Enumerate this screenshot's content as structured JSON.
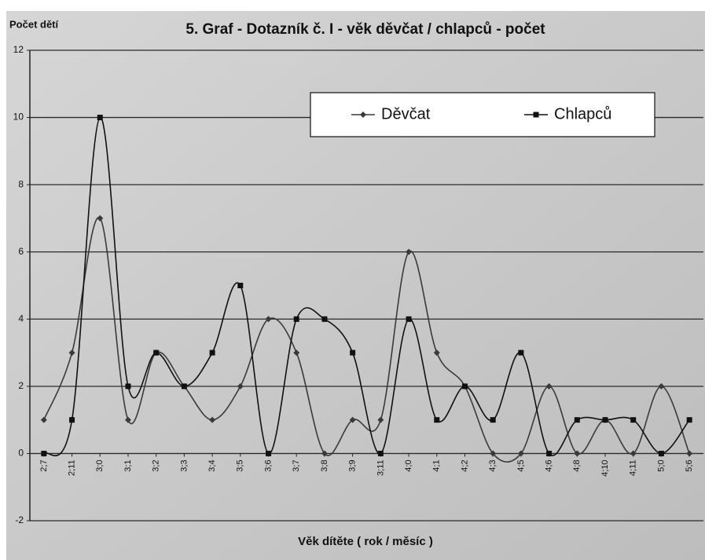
{
  "chart_data": {
    "type": "line",
    "title": "5. Graf - Dotazník č. I - věk děvčat / chlapců  - počet",
    "y_label": "Počet dětí",
    "x_label": "Věk dítěte ( rok / měsíc )",
    "categories": [
      "2;7",
      "2;11",
      "3;0",
      "3;1",
      "3;2",
      "3;3",
      "3;4",
      "3;5",
      "3;6",
      "3;7",
      "3;8",
      "3;9",
      "3;11",
      "4;0",
      "4;1",
      "4;2",
      "4;3",
      "4;5",
      "4;6",
      "4;8",
      "4;10",
      "4;11",
      "5;0",
      "5;6"
    ],
    "series": [
      {
        "name": "Děvčat",
        "color": "#3a3a3a",
        "marker": "diamond",
        "values": [
          1,
          3,
          7,
          1,
          3,
          2,
          1,
          2,
          4,
          3,
          0,
          1,
          1,
          6,
          3,
          2,
          0,
          0,
          2,
          0,
          1,
          0,
          2,
          0
        ]
      },
      {
        "name": "Chlapců",
        "color": "#111111",
        "marker": "square",
        "values": [
          0,
          1,
          10,
          2,
          3,
          2,
          3,
          5,
          0,
          4,
          4,
          3,
          0,
          4,
          1,
          2,
          1,
          3,
          0,
          1,
          1,
          1,
          0,
          1
        ]
      }
    ],
    "ylim": [
      -2,
      12
    ],
    "yticks": [
      -2,
      0,
      2,
      4,
      6,
      8,
      10,
      12
    ],
    "grid": true,
    "smooth": true,
    "legend": "top-right"
  }
}
